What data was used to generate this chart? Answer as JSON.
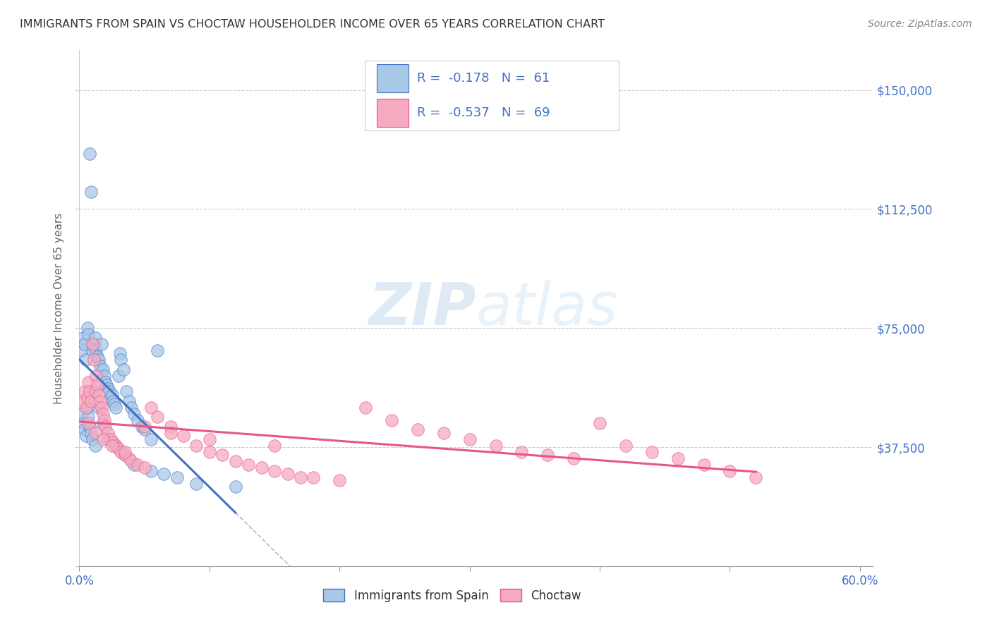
{
  "title": "IMMIGRANTS FROM SPAIN VS CHOCTAW HOUSEHOLDER INCOME OVER 65 YEARS CORRELATION CHART",
  "source": "Source: ZipAtlas.com",
  "ylabel": "Householder Income Over 65 years",
  "xlim": [
    0.0,
    0.61
  ],
  "ylim": [
    0,
    162500
  ],
  "yticks": [
    0,
    37500,
    75000,
    112500,
    150000
  ],
  "ytick_labels_right": [
    "",
    "$37,500",
    "$75,000",
    "$112,500",
    "$150,000"
  ],
  "xtick_positions": [
    0.0,
    0.1,
    0.2,
    0.3,
    0.4,
    0.5,
    0.6
  ],
  "xtick_labels": [
    "0.0%",
    "",
    "",
    "",
    "",
    "",
    "60.0%"
  ],
  "legend_R1": "R =  -0.178",
  "legend_N1": "N =  61",
  "legend_R2": "R =  -0.537",
  "legend_N2": "N =  69",
  "color_spain": "#a8c8e8",
  "color_choctaw": "#f5aac0",
  "line_color_spain": "#4472c4",
  "line_color_choctaw": "#e8558a",
  "line_color_dashed": "#aabbcc",
  "text_color_blue": "#4472c4",
  "text_color_title": "#333333",
  "watermark_zip": "ZIP",
  "watermark_atlas": "atlas",
  "spain_x": [
    0.002,
    0.003,
    0.004,
    0.005,
    0.006,
    0.007,
    0.008,
    0.009,
    0.01,
    0.011,
    0.012,
    0.013,
    0.014,
    0.015,
    0.016,
    0.017,
    0.018,
    0.019,
    0.02,
    0.021,
    0.022,
    0.023,
    0.024,
    0.025,
    0.026,
    0.027,
    0.028,
    0.03,
    0.031,
    0.032,
    0.034,
    0.036,
    0.038,
    0.04,
    0.042,
    0.045,
    0.048,
    0.05,
    0.055,
    0.06,
    0.002,
    0.003,
    0.004,
    0.005,
    0.006,
    0.007,
    0.008,
    0.009,
    0.01,
    0.012,
    0.015,
    0.018,
    0.022,
    0.028,
    0.035,
    0.042,
    0.055,
    0.065,
    0.075,
    0.09,
    0.12
  ],
  "spain_y": [
    68000,
    72000,
    70000,
    65000,
    75000,
    73000,
    130000,
    118000,
    68000,
    70000,
    72000,
    68000,
    66000,
    65000,
    63000,
    70000,
    62000,
    60000,
    58000,
    57000,
    56000,
    55000,
    53000,
    54000,
    52000,
    51000,
    50000,
    60000,
    67000,
    65000,
    62000,
    55000,
    52000,
    50000,
    48000,
    46000,
    44000,
    43000,
    40000,
    68000,
    48000,
    45000,
    43000,
    41000,
    50000,
    47000,
    44000,
    42000,
    40000,
    38000,
    50000,
    45000,
    40000,
    38000,
    35000,
    32000,
    30000,
    29000,
    28000,
    26000,
    25000
  ],
  "choctaw_x": [
    0.003,
    0.004,
    0.005,
    0.006,
    0.007,
    0.008,
    0.009,
    0.01,
    0.011,
    0.012,
    0.013,
    0.014,
    0.015,
    0.016,
    0.017,
    0.018,
    0.019,
    0.02,
    0.022,
    0.024,
    0.026,
    0.028,
    0.03,
    0.032,
    0.035,
    0.038,
    0.04,
    0.045,
    0.05,
    0.055,
    0.06,
    0.07,
    0.08,
    0.09,
    0.1,
    0.11,
    0.12,
    0.13,
    0.14,
    0.15,
    0.16,
    0.17,
    0.18,
    0.2,
    0.22,
    0.24,
    0.26,
    0.28,
    0.3,
    0.32,
    0.34,
    0.36,
    0.38,
    0.4,
    0.42,
    0.44,
    0.46,
    0.48,
    0.5,
    0.52,
    0.007,
    0.012,
    0.018,
    0.025,
    0.035,
    0.05,
    0.07,
    0.1,
    0.15
  ],
  "choctaw_y": [
    52000,
    55000,
    50000,
    53000,
    58000,
    55000,
    52000,
    70000,
    65000,
    55000,
    60000,
    57000,
    54000,
    52000,
    50000,
    48000,
    46000,
    44000,
    42000,
    40000,
    39000,
    38000,
    37000,
    36000,
    35000,
    34000,
    33000,
    32000,
    31000,
    50000,
    47000,
    44000,
    41000,
    38000,
    36000,
    35000,
    33000,
    32000,
    31000,
    30000,
    29000,
    28000,
    28000,
    27000,
    50000,
    46000,
    43000,
    42000,
    40000,
    38000,
    36000,
    35000,
    34000,
    45000,
    38000,
    36000,
    34000,
    32000,
    30000,
    28000,
    45000,
    42000,
    40000,
    38000,
    36000,
    44000,
    42000,
    40000,
    38000
  ]
}
